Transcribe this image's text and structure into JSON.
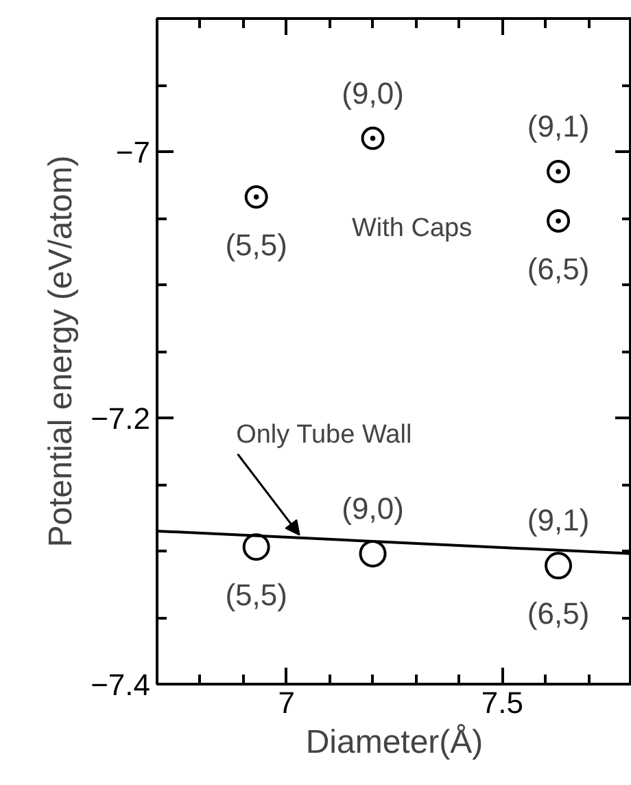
{
  "chart_data": {
    "type": "scatter",
    "xlabel": "Diameter(Å)",
    "ylabel": "Potential energy (eV/atom)",
    "x": [
      6.93,
      7.2,
      7.63,
      7.63
    ],
    "series": [
      {
        "color": "#000000",
        "values": [
          -7.034,
          -6.99,
          -7.015,
          -7.052
        ],
        "marker": "circle"
      },
      {
        "color": "#000000",
        "x": [
          6.93,
          7.2,
          7.63
        ],
        "values": [
          -7.297,
          -7.302,
          -7.311
        ],
        "marker": "circle"
      },
      {
        "type": "line",
        "color": "#000000",
        "x": [
          6.7,
          7.8
        ],
        "values": [
          -7.285,
          -7.302
        ],
        "marker": "none"
      }
    ],
    "xlim": [
      6.7,
      7.8
    ],
    "ylim": [
      -7.4,
      -6.9
    ],
    "xticks": [
      {
        "value": 6.8,
        "label": null
      },
      {
        "value": 6.9,
        "label": null
      },
      7,
      {
        "value": 7.1,
        "label": null
      },
      {
        "value": 7.2,
        "label": null
      },
      {
        "value": 7.3,
        "label": null
      },
      {
        "value": 7.4,
        "label": null
      },
      7.5,
      {
        "value": 7.6,
        "label": null
      },
      {
        "value": 7.7,
        "label": null
      }
    ],
    "yticks": [
      {
        "value": -7.4,
        "label": "−7.4"
      },
      {
        "value": -7.35,
        "label": null
      },
      {
        "value": -7.3,
        "label": null
      },
      {
        "value": -7.25,
        "label": null
      },
      {
        "value": -7.2,
        "label": "−7.2"
      },
      {
        "value": -7.15,
        "label": null
      },
      {
        "value": -7.1,
        "label": null
      },
      {
        "value": -7.05,
        "label": null
      },
      {
        "value": -7,
        "label": "−7"
      },
      {
        "value": -6.95,
        "label": null
      }
    ],
    "grid": false,
    "annotations": [
      {
        "text": "(9,0)",
        "x": 7.2,
        "y": -6.99
      },
      {
        "text": "(5,5)",
        "x": 6.93,
        "y": -7.034
      },
      {
        "text": "(9,1)",
        "x": 7.63,
        "y": -7.015
      },
      {
        "text": "(6,5)",
        "x": 7.63,
        "y": -7.052
      },
      "With Caps",
      {
        "text": "(9,0)",
        "x": 7.2,
        "y": -7.302
      },
      {
        "text": "(5,5)",
        "x": 6.93,
        "y": -7.297
      },
      {
        "text": "(9,1)",
        "x": 7.63,
        "y": -7.311
      },
      {
        "text": "(6,5)",
        "x": 7.63,
        "y": -7.311
      },
      {
        "text": "Only Tube Wall",
        "x": 7.03,
        "y": -7.288
      }
    ]
  }
}
